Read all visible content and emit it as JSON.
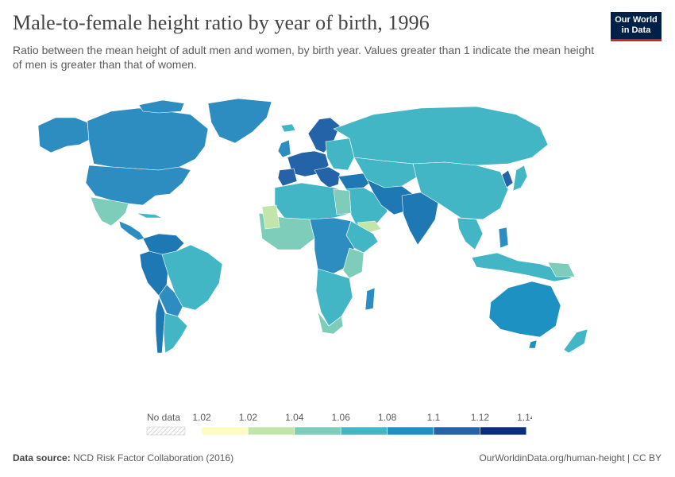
{
  "title": "Male-to-female height ratio by year of birth, 1996",
  "subtitle": "Ratio between the mean height of adult men and women, by birth year. Values greater than 1 indicate the mean height of men is greater than that of women.",
  "logo": {
    "line1": "Our World",
    "line2": "in Data"
  },
  "legend": {
    "no_data_label": "No data",
    "ticks": [
      "1.02",
      "1.02",
      "1.04",
      "1.06",
      "1.08",
      "1.1",
      "1.12",
      "1.14"
    ],
    "colors": [
      "#fdfcc3",
      "#c2e6a9",
      "#7ecdbb",
      "#43b6c5",
      "#1e91c3",
      "#2563a8",
      "#0a2e7d"
    ]
  },
  "footer": {
    "source_label": "Data source:",
    "source_text": "NCD Risk Factor Collaboration (2016)",
    "url_text": "OurWorldinData.org/human-height | CC BY"
  },
  "colors": {
    "bin_1_04_1_06": "#7ecdbb",
    "bin_1_06_1_08": "#43b6c5",
    "bin_1_08_1_10": "#1e91c3",
    "bin_1_02_1_04": "#c2e6a9",
    "bin_1_10_1_12": "#2563a8",
    "bin_low": "#fdfcc3"
  }
}
